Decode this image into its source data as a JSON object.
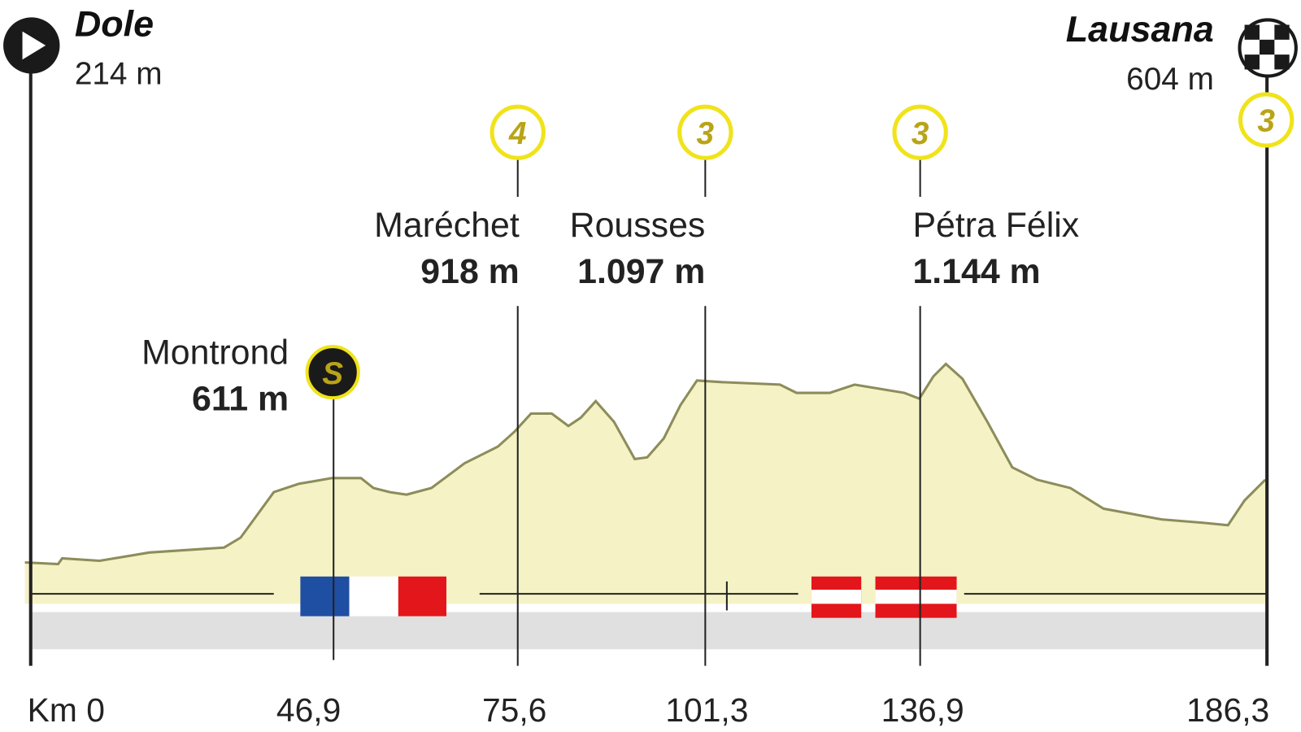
{
  "start": {
    "name": "Dole",
    "altitude": "214 m",
    "km": "Km 0"
  },
  "finish": {
    "name": "Lausana",
    "altitude": "604 m",
    "km": "186,3",
    "category": "3"
  },
  "points": [
    {
      "name": "Montrond",
      "altitude": "611 m",
      "km": "46,9",
      "badge": "S"
    },
    {
      "name": "Maréchet",
      "altitude": "918 m",
      "km": "75,6",
      "badge": "4"
    },
    {
      "name": "Rousses",
      "altitude": "1.097 m",
      "km": "101,3",
      "badge": "3"
    },
    {
      "name": "Pétra Félix",
      "altitude": "1.144 m",
      "km": "136,9",
      "badge": "3"
    }
  ]
}
